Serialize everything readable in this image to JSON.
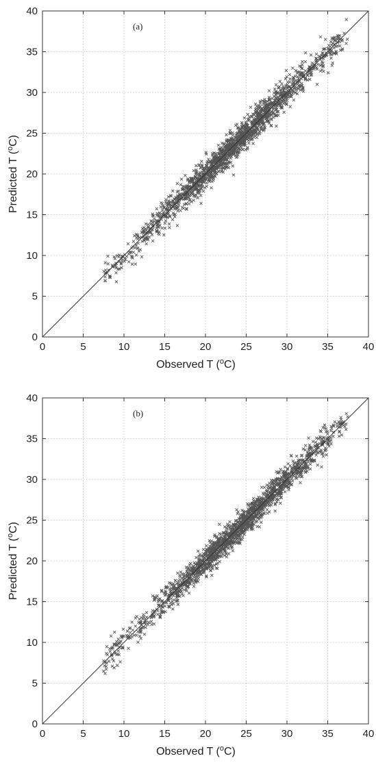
{
  "chart_data": [
    {
      "type": "scatter",
      "panel_label": "(a)",
      "xlabel": "Observed T (",
      "ylabel": "Predicted T (",
      "unit_superscript": "o",
      "unit_suffix": "C)",
      "xlim": [
        0,
        40
      ],
      "ylim": [
        0,
        40
      ],
      "xticks": [
        0,
        5,
        10,
        15,
        20,
        25,
        30,
        35,
        40
      ],
      "yticks": [
        0,
        5,
        10,
        15,
        20,
        25,
        30,
        35,
        40
      ],
      "grid": true,
      "reference_line": "y = x",
      "marker": "x",
      "marker_color": "#555555",
      "point_count": 1800,
      "x_range": [
        7.5,
        37.5
      ],
      "residual_spread": 0.9,
      "density_peak_x": 24
    },
    {
      "type": "scatter",
      "panel_label": "(b)",
      "xlabel": "Observed T (",
      "ylabel": "Predicted T (",
      "unit_superscript": "o",
      "unit_suffix": "C)",
      "xlim": [
        0,
        40
      ],
      "ylim": [
        0,
        40
      ],
      "xticks": [
        0,
        5,
        10,
        15,
        20,
        25,
        30,
        35,
        40
      ],
      "yticks": [
        0,
        5,
        10,
        15,
        20,
        25,
        30,
        35,
        40
      ],
      "grid": true,
      "reference_line": "y = x",
      "marker": "x",
      "marker_color": "#555555",
      "point_count": 1800,
      "x_range": [
        7.5,
        37.5
      ],
      "residual_spread": 0.85,
      "density_peak_x": 24
    }
  ]
}
